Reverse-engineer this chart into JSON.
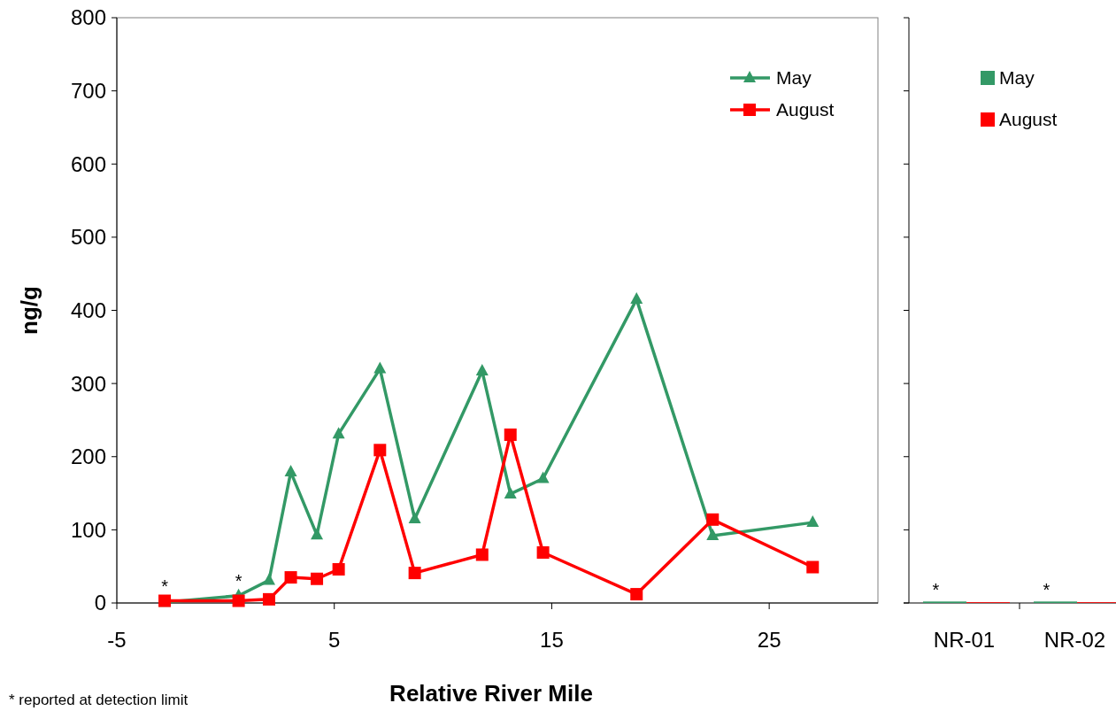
{
  "chart_data": [
    {
      "type": "line",
      "xlabel": "Relative River Mile",
      "ylabel": "ng/g",
      "xlim": [
        -5,
        30
      ],
      "xticks": [
        -5,
        5,
        15,
        25
      ],
      "ylim": [
        0,
        800
      ],
      "yticks": [
        0,
        100,
        200,
        300,
        400,
        500,
        600,
        700,
        800
      ],
      "x": [
        -2.8,
        0.6,
        2.0,
        3.0,
        4.2,
        5.2,
        7.1,
        8.7,
        11.8,
        13.1,
        14.6,
        18.9,
        22.4,
        27.0
      ],
      "series": [
        {
          "name": "May",
          "color": "#339966",
          "marker": "triangle",
          "values": [
            1,
            10,
            31,
            179,
            93,
            231,
            320,
            115,
            317,
            149,
            170,
            415,
            92,
            110
          ]
        },
        {
          "name": "August",
          "color": "#ff0000",
          "marker": "square",
          "values": [
            3,
            3,
            5,
            35,
            33,
            46,
            209,
            41,
            66,
            230,
            69,
            12,
            114,
            49
          ]
        }
      ],
      "legend": "top right",
      "annotations": [
        {
          "text": "*",
          "x": -2.8,
          "y": 3
        },
        {
          "text": "*",
          "x": 0.6,
          "y": 10
        },
        "* reported at detection limit"
      ]
    },
    {
      "type": "bar",
      "categories": [
        "NR-01",
        "NR-02"
      ],
      "ylim": [
        0,
        800
      ],
      "yticks": [
        0,
        100,
        200,
        300,
        400,
        500,
        600,
        700,
        800
      ],
      "tick_labels": "x",
      "series": [
        {
          "name": "May",
          "color": "#339966",
          "values": [
            2,
            2
          ]
        },
        {
          "name": "August",
          "color": "#ff0000",
          "values": [
            1,
            1
          ]
        }
      ],
      "legend": "top",
      "annotations": [
        {
          "text": "*",
          "x": "NR-01",
          "y": 2
        },
        {
          "text": "*",
          "x": "NR-02",
          "y": 2
        }
      ]
    }
  ]
}
